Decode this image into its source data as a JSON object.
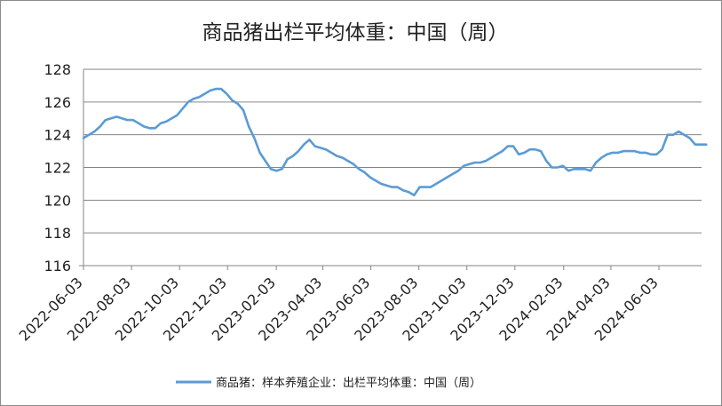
{
  "chart_data": {
    "type": "line",
    "title": "商品猪出栏平均体重：中国（周）",
    "xlabel": "",
    "ylabel": "",
    "ylim": [
      116,
      128
    ],
    "yticks": [
      116,
      118,
      120,
      122,
      124,
      126,
      128
    ],
    "x_tick_labels": [
      "2022-06-03",
      "2022-08-03",
      "2022-10-03",
      "2022-12-03",
      "2023-02-03",
      "2023-04-03",
      "2023-06-03",
      "2023-08-03",
      "2023-10-03",
      "2023-12-03",
      "2024-02-03",
      "2024-04-03",
      "2024-06-03"
    ],
    "grid": "horizontal",
    "legend_position": "bottom",
    "series": [
      {
        "name": "商品猪：样本养殖企业：出栏平均体重：中国（周）",
        "color": "#5b9bd5",
        "points": [
          [
            "2022-06-03",
            123.8
          ],
          [
            "2022-06-10",
            124.0
          ],
          [
            "2022-06-17",
            124.2
          ],
          [
            "2022-06-24",
            124.5
          ],
          [
            "2022-07-01",
            124.9
          ],
          [
            "2022-07-08",
            125.0
          ],
          [
            "2022-07-15",
            125.1
          ],
          [
            "2022-07-22",
            125.0
          ],
          [
            "2022-07-29",
            124.9
          ],
          [
            "2022-08-05",
            124.9
          ],
          [
            "2022-08-12",
            124.7
          ],
          [
            "2022-08-19",
            124.5
          ],
          [
            "2022-08-26",
            124.4
          ],
          [
            "2022-09-02",
            124.4
          ],
          [
            "2022-09-09",
            124.7
          ],
          [
            "2022-09-16",
            124.8
          ],
          [
            "2022-09-23",
            125.0
          ],
          [
            "2022-09-30",
            125.2
          ],
          [
            "2022-10-07",
            125.6
          ],
          [
            "2022-10-14",
            126.0
          ],
          [
            "2022-10-21",
            126.2
          ],
          [
            "2022-10-28",
            126.3
          ],
          [
            "2022-11-04",
            126.5
          ],
          [
            "2022-11-11",
            126.7
          ],
          [
            "2022-11-18",
            126.8
          ],
          [
            "2022-11-25",
            126.8
          ],
          [
            "2022-12-02",
            126.5
          ],
          [
            "2022-12-09",
            126.1
          ],
          [
            "2022-12-16",
            125.9
          ],
          [
            "2022-12-23",
            125.5
          ],
          [
            "2022-12-30",
            124.5
          ],
          [
            "2023-01-06",
            123.8
          ],
          [
            "2023-01-13",
            122.9
          ],
          [
            "2023-01-20",
            122.4
          ],
          [
            "2023-01-27",
            121.9
          ],
          [
            "2023-02-03",
            121.8
          ],
          [
            "2023-02-10",
            121.9
          ],
          [
            "2023-02-17",
            122.5
          ],
          [
            "2023-02-24",
            122.7
          ],
          [
            "2023-03-03",
            123.0
          ],
          [
            "2023-03-10",
            123.4
          ],
          [
            "2023-03-17",
            123.7
          ],
          [
            "2023-03-24",
            123.3
          ],
          [
            "2023-03-31",
            123.2
          ],
          [
            "2023-04-07",
            123.1
          ],
          [
            "2023-04-14",
            122.9
          ],
          [
            "2023-04-21",
            122.7
          ],
          [
            "2023-04-28",
            122.6
          ],
          [
            "2023-05-05",
            122.4
          ],
          [
            "2023-05-12",
            122.2
          ],
          [
            "2023-05-19",
            121.9
          ],
          [
            "2023-05-26",
            121.7
          ],
          [
            "2023-06-02",
            121.4
          ],
          [
            "2023-06-09",
            121.2
          ],
          [
            "2023-06-16",
            121.0
          ],
          [
            "2023-06-23",
            120.9
          ],
          [
            "2023-06-30",
            120.8
          ],
          [
            "2023-07-07",
            120.8
          ],
          [
            "2023-07-14",
            120.6
          ],
          [
            "2023-07-21",
            120.5
          ],
          [
            "2023-07-28",
            120.3
          ],
          [
            "2023-08-04",
            120.8
          ],
          [
            "2023-08-11",
            120.8
          ],
          [
            "2023-08-18",
            120.8
          ],
          [
            "2023-08-25",
            121.0
          ],
          [
            "2023-09-01",
            121.2
          ],
          [
            "2023-09-08",
            121.4
          ],
          [
            "2023-09-15",
            121.6
          ],
          [
            "2023-09-22",
            121.8
          ],
          [
            "2023-09-29",
            122.1
          ],
          [
            "2023-10-06",
            122.2
          ],
          [
            "2023-10-13",
            122.3
          ],
          [
            "2023-10-20",
            122.3
          ],
          [
            "2023-10-27",
            122.4
          ],
          [
            "2023-11-03",
            122.6
          ],
          [
            "2023-11-10",
            122.8
          ],
          [
            "2023-11-17",
            123.0
          ],
          [
            "2023-11-24",
            123.3
          ],
          [
            "2023-12-01",
            123.3
          ],
          [
            "2023-12-08",
            122.8
          ],
          [
            "2023-12-15",
            122.9
          ],
          [
            "2023-12-22",
            123.1
          ],
          [
            "2023-12-29",
            123.1
          ],
          [
            "2024-01-05",
            123.0
          ],
          [
            "2024-01-12",
            122.4
          ],
          [
            "2024-01-19",
            122.0
          ],
          [
            "2024-01-26",
            122.0
          ],
          [
            "2024-02-02",
            122.1
          ],
          [
            "2024-02-09",
            121.8
          ],
          [
            "2024-02-16",
            121.9
          ],
          [
            "2024-02-23",
            121.9
          ],
          [
            "2024-03-01",
            121.9
          ],
          [
            "2024-03-08",
            121.8
          ],
          [
            "2024-03-15",
            122.3
          ],
          [
            "2024-03-22",
            122.6
          ],
          [
            "2024-03-29",
            122.8
          ],
          [
            "2024-04-05",
            122.9
          ],
          [
            "2024-04-12",
            122.9
          ],
          [
            "2024-04-19",
            123.0
          ],
          [
            "2024-04-26",
            123.0
          ],
          [
            "2024-05-03",
            123.0
          ],
          [
            "2024-05-10",
            122.9
          ],
          [
            "2024-05-17",
            122.9
          ],
          [
            "2024-05-24",
            122.8
          ],
          [
            "2024-05-31",
            122.8
          ],
          [
            "2024-06-07",
            123.1
          ],
          [
            "2024-06-14",
            124.0
          ],
          [
            "2024-06-21",
            124.0
          ],
          [
            "2024-06-28",
            124.2
          ],
          [
            "2024-07-05",
            124.0
          ],
          [
            "2024-07-12",
            123.8
          ],
          [
            "2024-07-19",
            123.4
          ],
          [
            "2024-07-26",
            123.4
          ],
          [
            "2024-08-02",
            123.4
          ]
        ]
      }
    ]
  }
}
